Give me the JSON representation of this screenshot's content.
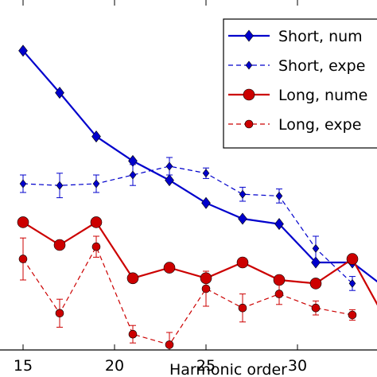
{
  "chart_data": {
    "type": "line",
    "xlabel": "Harmonic order",
    "ylabel": "",
    "xlim": [
      13,
      37
    ],
    "ylim": [
      0,
      1
    ],
    "xticks": [
      15,
      20,
      25,
      30,
      35
    ],
    "xtick_labels": [
      "15",
      "20",
      "25",
      "30",
      ""
    ],
    "grid": false,
    "legend_position": "top-right",
    "series": [
      {
        "name": "Short, numerical",
        "legend_text": "Short, num",
        "color": "#0000cc",
        "marker": "diamond",
        "line_style": "solid",
        "x": [
          15,
          17,
          19,
          21,
          23,
          25,
          27,
          29,
          31,
          33,
          35
        ],
        "y": [
          0.855,
          0.735,
          0.61,
          0.54,
          0.485,
          0.42,
          0.375,
          0.36,
          0.25,
          0.25,
          0.17
        ],
        "err": null
      },
      {
        "name": "Short, experiment",
        "legend_text": "Short, expe",
        "color": "#0000cc",
        "marker": "diamond",
        "line_style": "dashed",
        "x": [
          15,
          17,
          19,
          21,
          23,
          25,
          27,
          29,
          31,
          33
        ],
        "y": [
          0.475,
          0.47,
          0.475,
          0.5,
          0.525,
          0.505,
          0.445,
          0.44,
          0.29,
          0.19
        ],
        "err": [
          0.025,
          0.035,
          0.025,
          0.03,
          0.025,
          0.015,
          0.02,
          0.02,
          0.035,
          0.02
        ]
      },
      {
        "name": "Long, numerical",
        "legend_text": "Long, nume",
        "color": "#cc0000",
        "marker": "circle",
        "line_style": "solid",
        "x": [
          15,
          17,
          19,
          21,
          23,
          25,
          27,
          29,
          31,
          33,
          35
        ],
        "y": [
          0.365,
          0.3,
          0.365,
          0.205,
          0.235,
          0.205,
          0.25,
          0.2,
          0.19,
          0.26,
          0.07
        ],
        "err": null
      },
      {
        "name": "Long, experiment",
        "legend_text": "Long, expe",
        "color": "#cc0000",
        "marker": "circle",
        "line_style": "dashed",
        "x": [
          15,
          17,
          19,
          21,
          23,
          25,
          27,
          29,
          31,
          33
        ],
        "y": [
          0.26,
          0.105,
          0.295,
          0.045,
          0.015,
          0.175,
          0.12,
          0.16,
          0.12,
          0.1
        ],
        "err": [
          0.06,
          0.04,
          0.03,
          0.025,
          0.035,
          0.05,
          0.04,
          0.03,
          0.02,
          0.015
        ]
      }
    ]
  }
}
